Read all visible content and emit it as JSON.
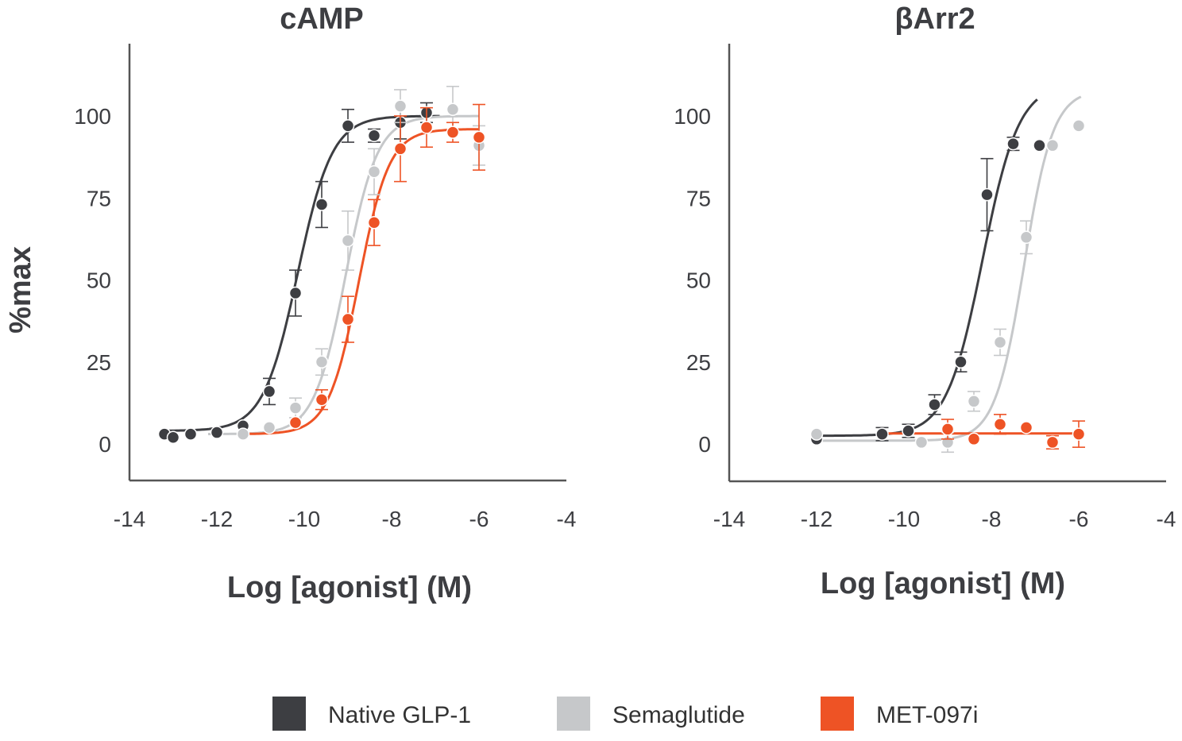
{
  "chart_data": [
    {
      "type": "scatter",
      "title": "cAMP",
      "xlabel": "Log [agonist] (M)",
      "ylabel": "%max",
      "xlim": [
        -14,
        -4
      ],
      "ylim": [
        -11,
        121
      ],
      "xticks": [
        -14,
        -12,
        -10,
        -8,
        -6,
        -4
      ],
      "yticks": [
        0,
        25,
        50,
        75,
        100
      ],
      "grid": false,
      "series": [
        {
          "name": "Native GLP-1",
          "color": "#3d3e42",
          "fit": {
            "bottom": 4,
            "top": 100,
            "logEC50": -10.15,
            "hill": 1.1,
            "xrange": [
              -13.3,
              -6.9
            ]
          },
          "points": [
            {
              "x": -13.2,
              "y": 3,
              "err": 0
            },
            {
              "x": -13.0,
              "y": 2,
              "err": 0
            },
            {
              "x": -12.6,
              "y": 3,
              "err": 0
            },
            {
              "x": -12.0,
              "y": 3.5,
              "err": 0
            },
            {
              "x": -11.4,
              "y": 5.5,
              "err": 0
            },
            {
              "x": -10.8,
              "y": 16,
              "err": 4
            },
            {
              "x": -10.2,
              "y": 46,
              "err": 7
            },
            {
              "x": -9.6,
              "y": 73,
              "err": 7
            },
            {
              "x": -9.0,
              "y": 97,
              "err": 5
            },
            {
              "x": -8.4,
              "y": 94,
              "err": 2
            },
            {
              "x": -7.8,
              "y": 98,
              "err": 5
            },
            {
              "x": -7.2,
              "y": 101,
              "err": 3
            }
          ]
        },
        {
          "name": "Semaglutide",
          "color": "#c6c8ca",
          "fit": {
            "bottom": 3,
            "top": 100,
            "logEC50": -9.05,
            "hill": 1.2,
            "xrange": [
              -12.2,
              -6.0
            ]
          },
          "points": [
            {
              "x": -11.4,
              "y": 3,
              "err": 0
            },
            {
              "x": -10.8,
              "y": 5,
              "err": 0
            },
            {
              "x": -10.2,
              "y": 11,
              "err": 3
            },
            {
              "x": -9.6,
              "y": 25,
              "err": 4
            },
            {
              "x": -9.0,
              "y": 62,
              "err": 9
            },
            {
              "x": -8.4,
              "y": 83,
              "err": 7
            },
            {
              "x": -7.8,
              "y": 103,
              "err": 5
            },
            {
              "x": -6.6,
              "y": 102,
              "err": 7
            },
            {
              "x": -6.0,
              "y": 91,
              "err": 6
            }
          ]
        },
        {
          "name": "MET-097i",
          "color": "#ee5325",
          "fit": {
            "bottom": 3,
            "top": 96,
            "logEC50": -8.75,
            "hill": 1.25,
            "xrange": [
              -11.4,
              -6.0
            ]
          },
          "points": [
            {
              "x": -10.2,
              "y": 6.5,
              "err": 0
            },
            {
              "x": -9.6,
              "y": 13.5,
              "err": 3
            },
            {
              "x": -9.0,
              "y": 38,
              "err": 7
            },
            {
              "x": -8.4,
              "y": 67.5,
              "err": 7
            },
            {
              "x": -7.8,
              "y": 90,
              "err": 10
            },
            {
              "x": -7.2,
              "y": 96.5,
              "err": 6
            },
            {
              "x": -6.6,
              "y": 95,
              "err": 3
            },
            {
              "x": -6.0,
              "y": 93.5,
              "err": 10
            }
          ]
        }
      ]
    },
    {
      "type": "scatter",
      "title": "βArr2",
      "xlabel": "Log [agonist] (M)",
      "ylabel": "",
      "xlim": [
        -14,
        -4
      ],
      "ylim": [
        -11,
        121
      ],
      "xticks": [
        -14,
        -12,
        -10,
        -8,
        -6,
        -4
      ],
      "yticks": [
        0,
        25,
        50,
        75,
        100
      ],
      "grid": false,
      "series": [
        {
          "name": "Native GLP-1",
          "color": "#3d3e42",
          "fit": {
            "bottom": 2.5,
            "top": 110,
            "logEC50": -8.2,
            "hill": 1.05,
            "xrange": [
              -12.0,
              -6.95
            ]
          },
          "points": [
            {
              "x": -12.0,
              "y": 1.5,
              "err": 0
            },
            {
              "x": -10.5,
              "y": 3,
              "err": 2
            },
            {
              "x": -9.9,
              "y": 4,
              "err": 2
            },
            {
              "x": -9.3,
              "y": 12,
              "err": 3
            },
            {
              "x": -8.7,
              "y": 25,
              "err": 3
            },
            {
              "x": -8.1,
              "y": 76,
              "err": 11
            },
            {
              "x": -7.5,
              "y": 91.5,
              "err": 2
            },
            {
              "x": -6.9,
              "y": 91,
              "err": 0
            }
          ]
        },
        {
          "name": "Semaglutide",
          "color": "#c6c8ca",
          "fit": {
            "bottom": 1,
            "top": 108,
            "logEC50": -7.25,
            "hill": 1.3,
            "xrange": [
              -12.0,
              -5.95
            ]
          },
          "points": [
            {
              "x": -12.0,
              "y": 3,
              "err": 0
            },
            {
              "x": -9.6,
              "y": 0.5,
              "err": 0
            },
            {
              "x": -9.0,
              "y": 0.5,
              "err": 3
            },
            {
              "x": -8.4,
              "y": 13,
              "err": 3
            },
            {
              "x": -7.8,
              "y": 31,
              "err": 4
            },
            {
              "x": -7.2,
              "y": 63,
              "err": 5
            },
            {
              "x": -6.6,
              "y": 91,
              "err": 0
            },
            {
              "x": -6.0,
              "y": 97,
              "err": 0
            }
          ]
        },
        {
          "name": "MET-097i",
          "color": "#ee5325",
          "fit": {
            "flat": 3.2,
            "xrange": [
              -10.5,
              -6.0
            ]
          },
          "points": [
            {
              "x": -9.0,
              "y": 4.5,
              "err": 3
            },
            {
              "x": -8.4,
              "y": 1.5,
              "err": 0
            },
            {
              "x": -7.8,
              "y": 6,
              "err": 3
            },
            {
              "x": -7.2,
              "y": 5,
              "err": 0
            },
            {
              "x": -6.6,
              "y": 0.5,
              "err": 2
            },
            {
              "x": -6.0,
              "y": 3,
              "err": 4
            }
          ]
        }
      ]
    }
  ],
  "legend": {
    "placement": "bottom-center",
    "items": [
      {
        "label": "Native GLP-1",
        "color": "#3d3e42"
      },
      {
        "label": "Semaglutide",
        "color": "#c6c8ca"
      },
      {
        "label": "MET-097i",
        "color": "#ee5325"
      }
    ]
  }
}
